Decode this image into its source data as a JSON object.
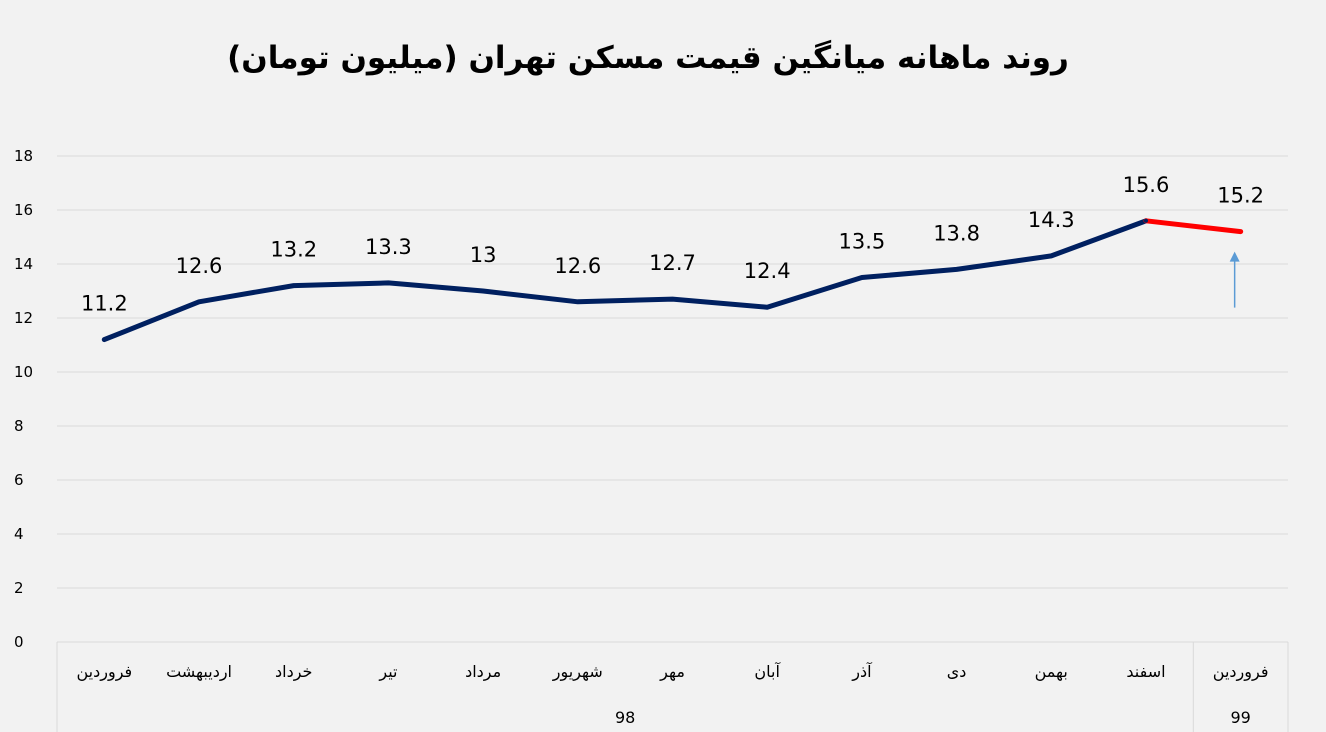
{
  "chart_data": {
    "type": "line",
    "title": "روند ماهانه میانگین قیمت مسکن تهران (میلیون تومان)",
    "categories": [
      "فروردین",
      "اردیبهشت",
      "خرداد",
      "تیر",
      "مرداد",
      "شهریور",
      "مهر",
      "آبان",
      "آذر",
      "دی",
      "بهمن",
      "اسفند",
      "فروردین"
    ],
    "year_groups": [
      {
        "label": "98",
        "count": 12
      },
      {
        "label": "99",
        "count": 1
      }
    ],
    "series": [
      {
        "values": [
          11.2,
          12.6,
          13.2,
          13.3,
          13,
          12.6,
          12.7,
          12.4,
          13.5,
          13.8,
          14.3,
          15.6,
          15.2
        ]
      }
    ],
    "data_labels": [
      "11.2",
      "12.6",
      "13.2",
      "13.3",
      "13",
      "12.6",
      "12.7",
      "12.4",
      "13.5",
      "13.8",
      "14.3",
      "15.6",
      "15.2"
    ],
    "highlight_last_segment": true,
    "colors": {
      "line": "#002060",
      "highlight": "#ff0000",
      "arrow": "#5b9bd5",
      "grid": "#d9d9d9"
    },
    "ylim": [
      0,
      18
    ],
    "yticks": [
      0,
      2,
      4,
      6,
      8,
      10,
      12,
      14,
      16,
      18
    ],
    "xlabel": "",
    "ylabel": "",
    "grid": true,
    "legend": "none"
  }
}
